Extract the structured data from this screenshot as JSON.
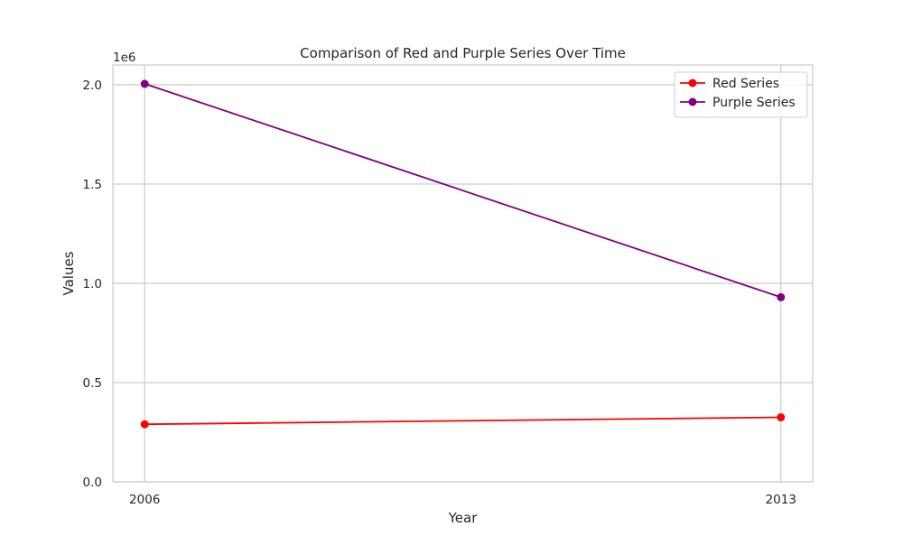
{
  "chart_data": {
    "type": "line",
    "title": "Comparison of Red and Purple Series Over Time",
    "xlabel": "Year",
    "ylabel": "Values",
    "x": [
      2006,
      2013
    ],
    "xticks": [
      "2006",
      "2013"
    ],
    "xlim": [
      2005.65,
      2013.35
    ],
    "ylim": [
      0,
      2100000
    ],
    "yticks": [
      0,
      500000,
      1000000,
      1500000,
      2000000
    ],
    "ytick_labels": [
      "0.0",
      "0.5",
      "1.0",
      "1.5",
      "2.0"
    ],
    "y_offset_label": "1e6",
    "grid": true,
    "legend_position": "top-right",
    "series": [
      {
        "name": "Red Series",
        "color": "#ff0000",
        "values": [
          290000,
          325000
        ]
      },
      {
        "name": "Purple Series",
        "color": "#800080",
        "values": [
          2005000,
          930000
        ]
      }
    ]
  }
}
